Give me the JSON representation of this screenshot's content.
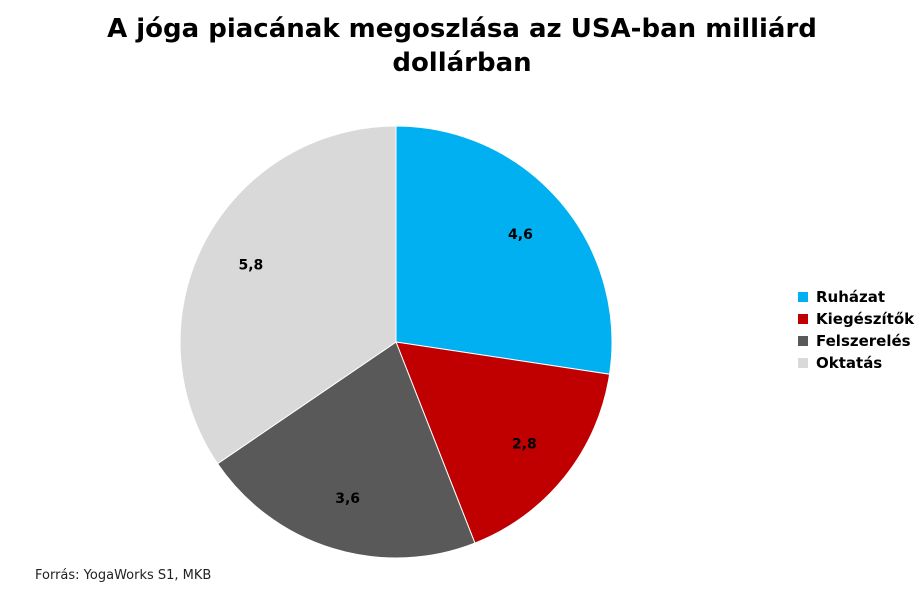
{
  "chart_data": {
    "type": "pie",
    "title": "A jóga piacának megoszlása az USA-ban milliárd dollárban",
    "categories": [
      "Ruházat",
      "Kiegészítők",
      "Felszerelés",
      "Oktatás"
    ],
    "values": [
      4.6,
      2.8,
      3.6,
      5.8
    ],
    "data_labels": [
      "4,6",
      "2,8",
      "3,6",
      "5,8"
    ],
    "colors": [
      "#00B0F0",
      "#C00000",
      "#595959",
      "#D9D9D9"
    ],
    "legend_position": "right",
    "start_angle": "12 o'clock",
    "direction": "clockwise"
  },
  "source": "Forrás: YogaWorks S1, MKB"
}
